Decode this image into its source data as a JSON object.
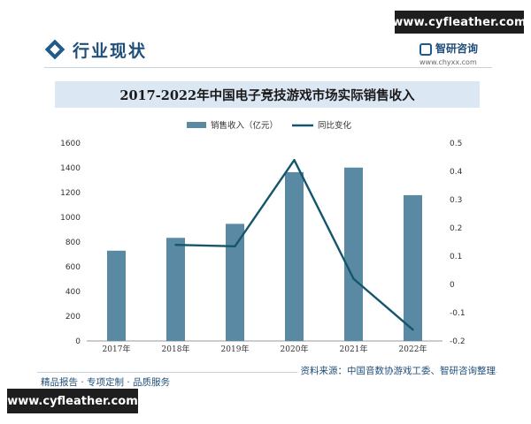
{
  "watermark": {
    "top_text": "www.cyfleather.com",
    "bottom_text": "www.cyfleather.com"
  },
  "header": {
    "section_title": "行业现状"
  },
  "brand": {
    "name": "智研咨询",
    "url": "www.chyxx.com"
  },
  "footer": {
    "source": "资料来源：中国音数协游戏工委、智研咨询整理",
    "tagline": "精品报告 · 专项定制 · 品质服务"
  },
  "colors": {
    "bar": "#5a8aa3",
    "line": "#14566b",
    "axis": "#9a9a9a"
  },
  "chart_data": {
    "type": "bar",
    "title": "2017-2022年中国电子竞技游戏市场实际销售收入",
    "categories": [
      "2017年",
      "2018年",
      "2019年",
      "2020年",
      "2021年",
      "2022年"
    ],
    "series": [
      {
        "name": "销售收入（亿元）",
        "type": "bar",
        "axis": "left",
        "values": [
          730,
          834,
          947,
          1365,
          1402,
          1179
        ]
      },
      {
        "name": "同比变化",
        "type": "line",
        "axis": "right",
        "values": [
          null,
          0.14,
          0.135,
          0.44,
          0.02,
          -0.16
        ]
      }
    ],
    "y_left": {
      "min": 0,
      "max": 1600,
      "ticks": [
        "0",
        "200",
        "400",
        "600",
        "800",
        "1000",
        "1200",
        "1400",
        "1600"
      ]
    },
    "y_right": {
      "min": -0.2,
      "max": 0.5,
      "ticks": [
        "-0.2",
        "-0.1",
        "0",
        "0.1",
        "0.2",
        "0.3",
        "0.4",
        "0.5"
      ]
    },
    "legend_placement": "top-center",
    "grid": false
  }
}
